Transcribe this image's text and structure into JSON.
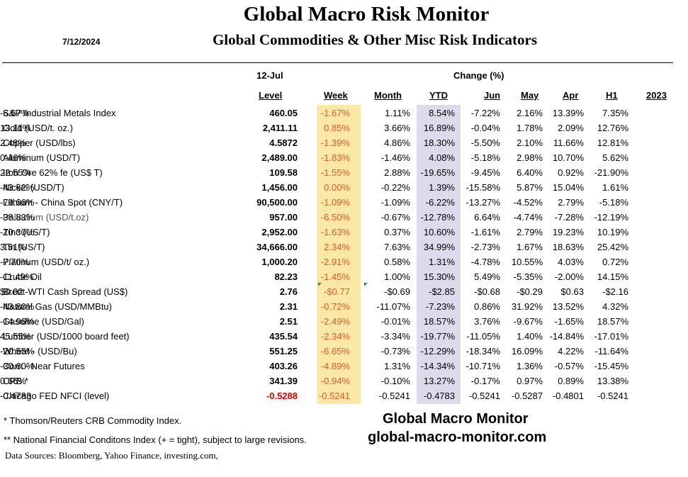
{
  "header": {
    "title": "Global Macro Risk Monitor",
    "subtitle": "Global Commodities & Other Misc Risk Indicators",
    "date": "7/12/2024"
  },
  "columns": {
    "as_of": "12-Jul",
    "change_label": "Change (%)",
    "level": "Level",
    "week": "Week",
    "month": "Month",
    "ytd": "YTD",
    "jun": "Jun",
    "may": "May",
    "apr": "Apr",
    "h1": "H1",
    "y2023": "2023"
  },
  "rows": [
    {
      "name": "S&P Industrial Metals Index",
      "level": "460.05",
      "week": "-1.67%",
      "month": "1.11%",
      "ytd": "8.54%",
      "jun": "-7.22%",
      "may": "2.16%",
      "apr": "13.39%",
      "h1": "7.35%",
      "y2023": "-6.67%"
    },
    {
      "name": "Gold (USD/t. oz.)",
      "level": "2,411.11",
      "week": "0.85%",
      "month": "3.66%",
      "ytd": "16.89%",
      "jun": "-0.04%",
      "may": "1.78%",
      "apr": "2.09%",
      "h1": "12.76%",
      "y2023": "13.11%"
    },
    {
      "name": "Copper (USD/lbs)",
      "level": "4.5872",
      "week": "-1.39%",
      "month": "4.86%",
      "ytd": "18.30%",
      "jun": "-5.50%",
      "may": "2.10%",
      "apr": "11.66%",
      "h1": "12.81%",
      "y2023": "2.48%"
    },
    {
      "name": "Aluminum (USD/T)",
      "level": "2,489.00",
      "week": "-1.83%",
      "month": "-1.46%",
      "ytd": "4.08%",
      "jun": "-5.18%",
      "may": "2.98%",
      "apr": "10.70%",
      "h1": "5.62%",
      "y2023": "0.46%"
    },
    {
      "name": "Iron Ore 62% fe (US$ T)",
      "level": "109.58",
      "week": "-1.55%",
      "month": "2.88%",
      "ytd": "-19.65%",
      "jun": "-9.45%",
      "may": "6.40%",
      "apr": "0.92%",
      "h1": "-21.90%",
      "y2023": "22.55%"
    },
    {
      "name": "Nickel (USD/T)",
      "level": "1,456.00",
      "week": "0.00%",
      "month": "-0.22%",
      "ytd": "1.39%",
      "jun": "-15.58%",
      "may": "5.87%",
      "apr": "15.04%",
      "h1": "1.61%",
      "y2023": "-43.62%"
    },
    {
      "name": "Lithium - China Spot (CNY/T)",
      "level": "90,500.00",
      "week": "-1.09%",
      "month": "-1.09%",
      "ytd": "-6.22%",
      "jun": "-13.27%",
      "may": "-4.52%",
      "apr": "2.79%",
      "h1": "-5.18%",
      "y2023": "-79.66%"
    },
    {
      "name": "Palladium (USD/t.oz)",
      "level": "957.00",
      "week": "-6.50%",
      "month": "-0.67%",
      "ytd": "-12.78%",
      "jun": "6.64%",
      "may": "-4.74%",
      "apr": "-7.28%",
      "h1": "-12.19%",
      "y2023": "-38.83%"
    },
    {
      "name": "Zinc (US/T)",
      "level": "2,952.00",
      "week": "-1.63%",
      "month": "0.37%",
      "ytd": "10.60%",
      "jun": "-1.61%",
      "may": "2.79%",
      "apr": "19.23%",
      "h1": "10.19%",
      "y2023": "-10.30%"
    },
    {
      "name": "Tin (US/T)",
      "level": "34,666.00",
      "week": "2.34%",
      "month": "7.63%",
      "ytd": "34.99%",
      "jun": "-2.73%",
      "may": "1.67%",
      "apr": "18.63%",
      "h1": "25.42%",
      "y2023": "3.51%"
    },
    {
      "name": "Platinum (USD/t/ oz.)",
      "level": "1,000.20",
      "week": "-2.91%",
      "month": "0.58%",
      "ytd": "1.31%",
      "jun": "-4.78%",
      "may": "10.55%",
      "apr": "4.03%",
      "h1": "0.72%",
      "y2023": "-7.70%"
    },
    {
      "name": "Crude Oil",
      "level": "82.23",
      "week": "-1.45%",
      "month": "1.00%",
      "ytd": "15.30%",
      "jun": "5.49%",
      "may": "-5.35%",
      "apr": "-2.00%",
      "h1": "14.15%",
      "y2023": "-11.49%"
    },
    {
      "name": "Brent-WTI Cash Spread (US$)",
      "level": "2.76",
      "week": "-$0.77",
      "month": "-$0.69",
      "ytd": "-$2.85",
      "jun": "-$0.68",
      "may": "-$0.29",
      "apr": "$0.63",
      "h1": "-$2.16",
      "y2023": "$0.02"
    },
    {
      "name": "Natural Gas  (USD/MMBtu)",
      "level": "2.31",
      "week": "-0.72%",
      "month": "-11.07%",
      "ytd": "-7.23%",
      "jun": "0.86%",
      "may": "31.92%",
      "apr": "13.52%",
      "h1": "4.32%",
      "y2023": "-43.80%"
    },
    {
      "name": "Gasoline (USD/Gal)",
      "level": "2.51",
      "week": "-2.49%",
      "month": "-0.01%",
      "ytd": "18.57%",
      "jun": "3.76%",
      "may": "-9.67%",
      "apr": "-1.65%",
      "h1": "18.57%",
      "y2023": "-14.96%"
    },
    {
      "name": "Lumber (USD/1000 board feet)",
      "level": "435.54",
      "week": "-2.34%",
      "month": "-3.34%",
      "ytd": "-19.77%",
      "jun": "-11.05%",
      "may": "1.40%",
      "apr": "-14.84%",
      "h1": "-17.01%",
      "y2023": "45.55%"
    },
    {
      "name": "Wheat - (USD/Bu)",
      "level": "551.25",
      "week": "-6.65%",
      "month": "-0.73%",
      "ytd": "-12.29%",
      "jun": "-18.34%",
      "may": "16.09%",
      "apr": "4.22%",
      "h1": "-11.64%",
      "y2023": "-20.55%"
    },
    {
      "name": "Corn - Near Futures",
      "level": "403.26",
      "week": "-4.89%",
      "month": "1.31%",
      "ytd": "-14.34%",
      "jun": "-10.71%",
      "may": "1.36%",
      "apr": "-0.57%",
      "h1": "-15.45%",
      "y2023": "-30.60%"
    },
    {
      "name": "CRB *",
      "level": "341.39",
      "week": "-0.94%",
      "month": "-0.10%",
      "ytd": "13.27%",
      "jun": "-0.17%",
      "may": "0.97%",
      "apr": "0.89%",
      "h1": "13.38%",
      "y2023": "0.66%"
    },
    {
      "name": "Chicago FED NFCI (level)",
      "level": "-0.5288",
      "week": "-0.5241",
      "month": "-0.5241",
      "ytd": "-0.4783",
      "jun": "-0.5241",
      "may": "-0.5287",
      "apr": "-0.4801",
      "h1": "-0.5241",
      "y2023": "-0.4783"
    }
  ],
  "footnotes": {
    "crb": "*     Thomson/Reuters CRB Commodity Index.",
    "nfci": "** National Financial Conditons Index (+ = tight), subject to large revisions.",
    "sources": "Data Sources:  Bloomberg,  Yahoo Finance, investing.com,"
  },
  "brand": {
    "name": "Global Macro Monitor",
    "url": "global-macro-monitor.com"
  },
  "colors": {
    "week_highlight": "#fbe8a6",
    "ytd_highlight": "#dddbeb",
    "week_text": "#e05a2b",
    "negative_level": "#e00000"
  }
}
